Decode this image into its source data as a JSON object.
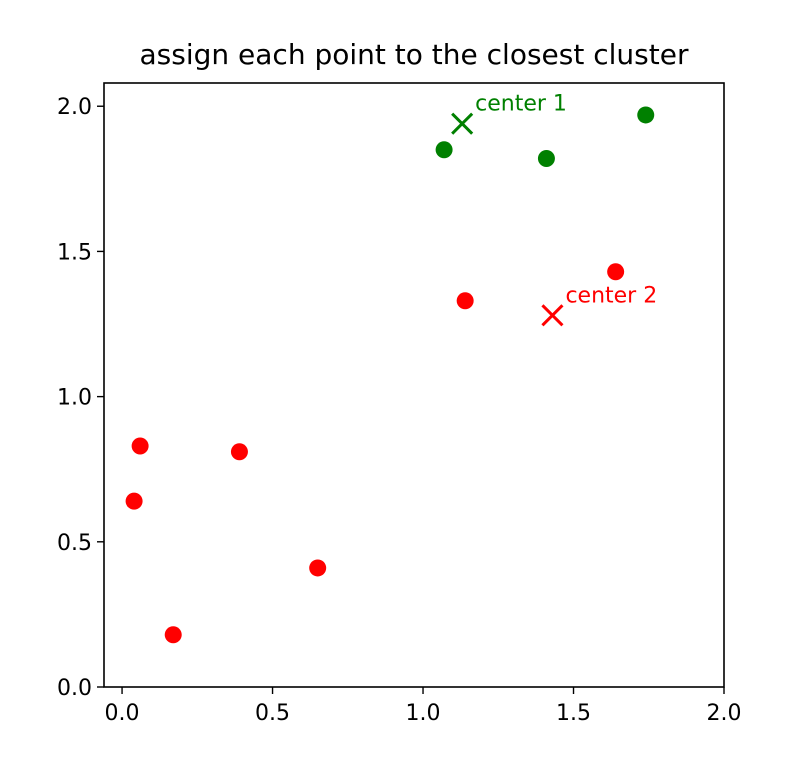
{
  "chart_data": {
    "type": "scatter",
    "title": "assign each point to the closest cluster",
    "xlabel": "",
    "ylabel": "",
    "xlim": [
      -0.06,
      2.0
    ],
    "ylim": [
      0.0,
      2.08
    ],
    "x_ticks": [
      0.0,
      0.5,
      1.0,
      1.5,
      2.0
    ],
    "y_ticks": [
      0.0,
      0.5,
      1.0,
      1.5,
      2.0
    ],
    "x_tick_labels": [
      "0.0",
      "0.5",
      "1.0",
      "1.5",
      "2.0"
    ],
    "y_tick_labels": [
      "0.0",
      "0.5",
      "1.0",
      "1.5",
      "2.0"
    ],
    "grid": false,
    "colors": {
      "cluster1": "#008000",
      "cluster2": "#ff0000"
    },
    "series": [
      {
        "color": "#008000",
        "marker": "circle",
        "points": [
          {
            "x": 1.07,
            "y": 1.85
          },
          {
            "x": 1.41,
            "y": 1.82
          },
          {
            "x": 1.74,
            "y": 1.97
          }
        ]
      },
      {
        "color": "#ff0000",
        "marker": "circle",
        "points": [
          {
            "x": 0.04,
            "y": 0.64
          },
          {
            "x": 0.06,
            "y": 0.83
          },
          {
            "x": 0.17,
            "y": 0.18
          },
          {
            "x": 0.39,
            "y": 0.81
          },
          {
            "x": 0.65,
            "y": 0.41
          },
          {
            "x": 1.14,
            "y": 1.33
          },
          {
            "x": 1.64,
            "y": 1.43
          }
        ]
      }
    ],
    "centers": [
      {
        "label": "center 1",
        "x": 1.13,
        "y": 1.94,
        "color": "#008000",
        "marker": "x"
      },
      {
        "label": "center 2",
        "x": 1.43,
        "y": 1.28,
        "color": "#ff0000",
        "marker": "x"
      }
    ]
  }
}
